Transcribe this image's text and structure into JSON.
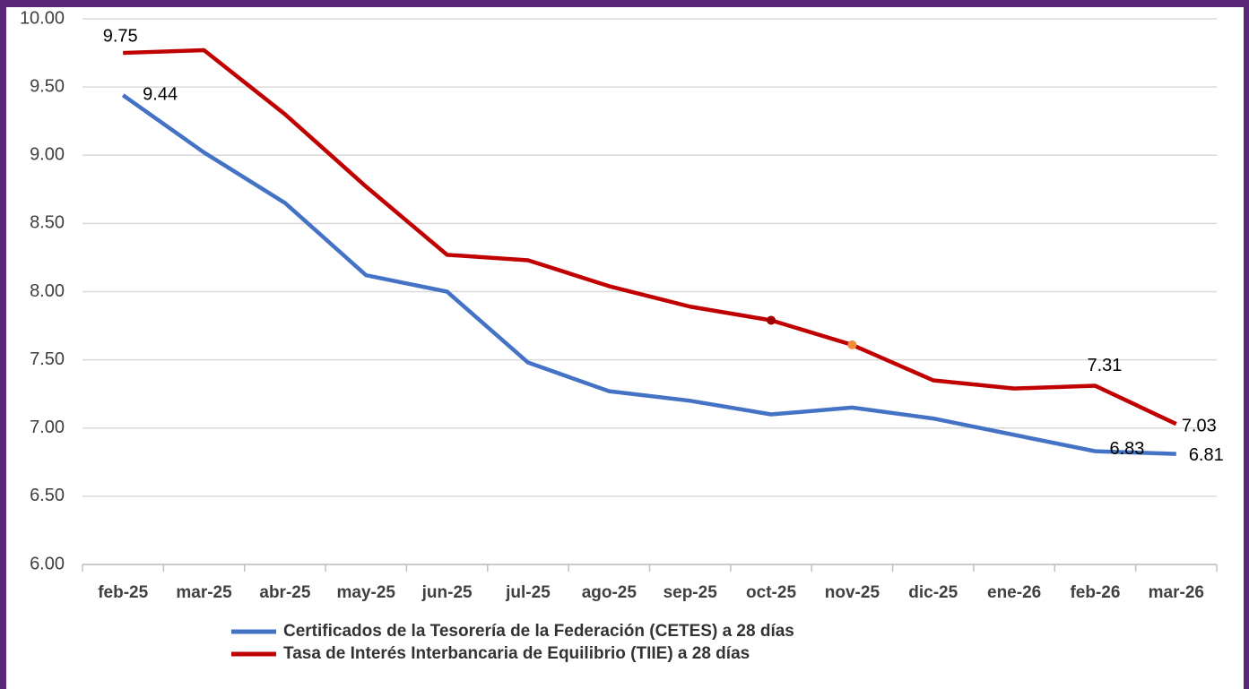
{
  "chart_data": {
    "type": "line",
    "categories": [
      "feb-25",
      "mar-25",
      "abr-25",
      "may-25",
      "jun-25",
      "jul-25",
      "ago-25",
      "sep-25",
      "oct-25",
      "nov-25",
      "dic-25",
      "ene-26",
      "feb-26",
      "mar-26"
    ],
    "series": [
      {
        "name": "Certificados de la Tesorería de la Federación (CETES) a 28 días",
        "color": "#4472c4",
        "values": [
          9.44,
          9.02,
          8.65,
          8.12,
          8.0,
          7.48,
          7.27,
          7.2,
          7.1,
          7.15,
          7.07,
          6.95,
          6.83,
          6.81
        ],
        "value_labels": [
          "9.44",
          null,
          null,
          null,
          null,
          null,
          null,
          null,
          null,
          null,
          null,
          null,
          "6.83",
          "6.81"
        ]
      },
      {
        "name": "Tasa de Interés Interbancaria de Equilibrio (TIIE) a 28 días",
        "color": "#c00000",
        "values": [
          9.75,
          9.77,
          9.3,
          8.77,
          8.27,
          8.23,
          8.04,
          7.89,
          7.79,
          7.61,
          7.35,
          7.29,
          7.31,
          7.03
        ],
        "value_labels": [
          "9.75",
          null,
          null,
          null,
          null,
          null,
          null,
          null,
          null,
          null,
          null,
          null,
          "7.31",
          "7.03"
        ]
      }
    ],
    "ylim": [
      6,
      10
    ],
    "yticks": [
      {
        "value": 6,
        "label": "6.00"
      },
      {
        "value": 6.5,
        "label": "6.50"
      },
      {
        "value": 7,
        "label": "7.00"
      },
      {
        "value": 7.5,
        "label": "7.50"
      },
      {
        "value": 8,
        "label": "8.00"
      },
      {
        "value": 8.5,
        "label": "8.50"
      },
      {
        "value": 9,
        "label": "9.00"
      },
      {
        "value": 9.5,
        "label": "9.50"
      },
      {
        "value": 10,
        "label": "10.00"
      }
    ],
    "grid": true,
    "legend": "bottom"
  }
}
